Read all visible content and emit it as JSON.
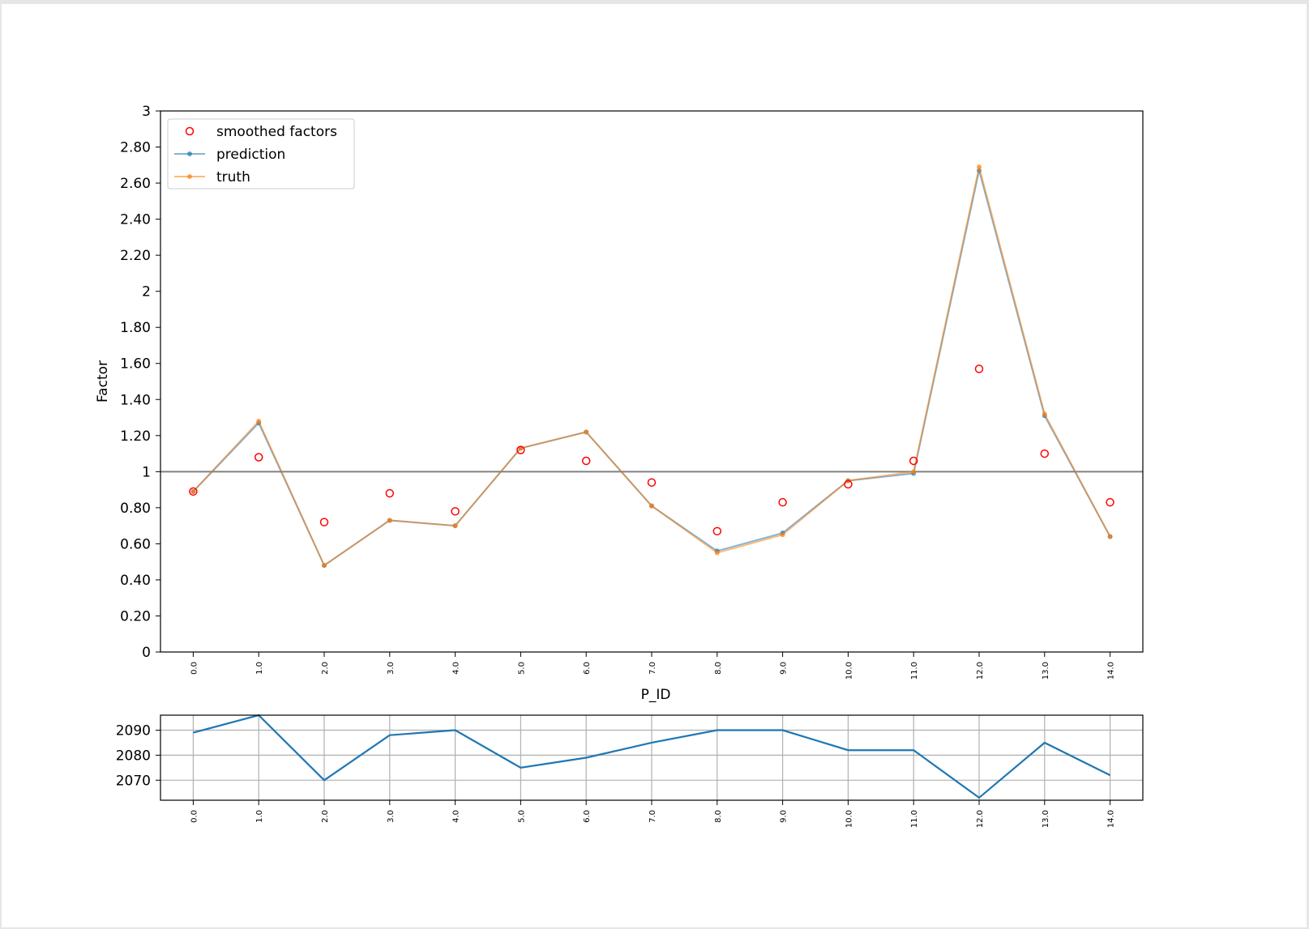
{
  "chart_data": [
    {
      "type": "line",
      "xlabel": "P_ID",
      "ylabel": "Factor",
      "ylim": [
        0,
        3
      ],
      "y_ticks": [
        "0",
        "0.20",
        "0.40",
        "0.60",
        "0.80",
        "1",
        "1.20",
        "1.40",
        "1.60",
        "1.80",
        "2",
        "2.20",
        "2.40",
        "2.60",
        "2.80",
        "3"
      ],
      "y_tick_values": [
        0,
        0.2,
        0.4,
        0.6,
        0.8,
        1,
        1.2,
        1.4,
        1.6,
        1.8,
        2,
        2.2,
        2.4,
        2.6,
        2.8,
        3
      ],
      "x": [
        0,
        1,
        2,
        3,
        4,
        5,
        6,
        7,
        8,
        9,
        10,
        11,
        12,
        13,
        14
      ],
      "x_tick_labels": [
        "0.0",
        "1.0",
        "2.0",
        "3.0",
        "4.0",
        "5.0",
        "6.0",
        "7.0",
        "8.0",
        "9.0",
        "10.0",
        "11.0",
        "12.0",
        "13.0",
        "14.0"
      ],
      "reference_line": 1,
      "legend_position": "top-left",
      "grid": false,
      "series": [
        {
          "name": "smoothed factors",
          "style": "markers",
          "color": "#ff0000",
          "values": [
            0.89,
            1.08,
            0.72,
            0.88,
            0.78,
            1.12,
            1.06,
            0.94,
            0.67,
            0.83,
            0.93,
            1.06,
            1.57,
            1.1,
            0.83
          ]
        },
        {
          "name": "prediction",
          "style": "line-with-dots",
          "color": "#1f77b4",
          "values": [
            0.89,
            1.27,
            0.48,
            0.73,
            0.7,
            1.13,
            1.22,
            0.81,
            0.56,
            0.66,
            0.95,
            0.99,
            2.67,
            1.31,
            0.64
          ]
        },
        {
          "name": "truth",
          "style": "line-with-dots",
          "color": "#ff7f0e",
          "values": [
            0.89,
            1.28,
            0.48,
            0.73,
            0.7,
            1.13,
            1.22,
            0.81,
            0.55,
            0.65,
            0.95,
            1.0,
            2.69,
            1.32,
            0.64
          ]
        }
      ]
    },
    {
      "type": "line",
      "xlabel": "",
      "ylabel": "",
      "ylim": [
        2062,
        2096
      ],
      "y_ticks": [
        "2070",
        "2080",
        "2090"
      ],
      "y_tick_values": [
        2070,
        2080,
        2090
      ],
      "x": [
        0,
        1,
        2,
        3,
        4,
        5,
        6,
        7,
        8,
        9,
        10,
        11,
        12,
        13,
        14
      ],
      "x_tick_labels": [
        "0.0",
        "1.0",
        "2.0",
        "3.0",
        "4.0",
        "5.0",
        "6.0",
        "7.0",
        "8.0",
        "9.0",
        "10.0",
        "11.0",
        "12.0",
        "13.0",
        "14.0"
      ],
      "grid": true,
      "series": [
        {
          "color": "#1f77b4",
          "values": [
            2089,
            2096,
            2070,
            2088,
            2090,
            2075,
            2079,
            2085,
            2090,
            2090,
            2082,
            2082,
            2063,
            2085,
            2072
          ]
        }
      ]
    }
  ]
}
